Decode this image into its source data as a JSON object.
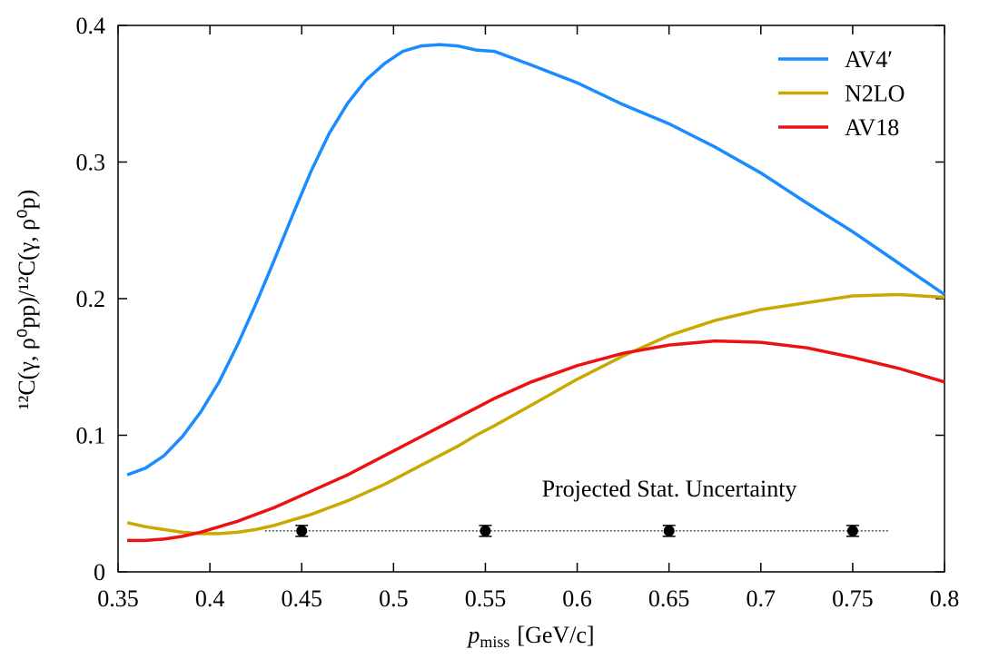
{
  "chart_data": {
    "type": "line",
    "x_label": {
      "symbol": "p",
      "subscript": "miss",
      "unit": "[GeV/c]"
    },
    "y_label": "¹²C(γ, ρ⁰pp)/¹²C(γ, ρ⁰p)",
    "x": [
      0.355,
      0.365,
      0.375,
      0.385,
      0.395,
      0.405,
      0.415,
      0.425,
      0.435,
      0.445,
      0.455,
      0.465,
      0.475,
      0.485,
      0.495,
      0.505,
      0.515,
      0.525,
      0.535,
      0.545,
      0.555,
      0.575,
      0.6,
      0.625,
      0.65,
      0.675,
      0.7,
      0.725,
      0.75,
      0.775,
      0.8
    ],
    "series": [
      {
        "name": "AV4′",
        "color": "#1a8cff",
        "values": [
          0.071,
          0.076,
          0.085,
          0.099,
          0.117,
          0.139,
          0.166,
          0.196,
          0.228,
          0.261,
          0.293,
          0.321,
          0.343,
          0.36,
          0.372,
          0.381,
          0.385,
          0.386,
          0.385,
          0.382,
          0.381,
          0.371,
          0.358,
          0.342,
          0.328,
          0.311,
          0.292,
          0.27,
          0.249,
          0.226,
          0.203
        ]
      },
      {
        "name": "N2LO",
        "color": "#c9a800",
        "values": [
          0.036,
          0.033,
          0.031,
          0.029,
          0.028,
          0.028,
          0.029,
          0.031,
          0.034,
          0.038,
          0.042,
          0.047,
          0.052,
          0.058,
          0.064,
          0.071,
          0.078,
          0.085,
          0.092,
          0.1,
          0.107,
          0.122,
          0.141,
          0.158,
          0.173,
          0.184,
          0.192,
          0.197,
          0.202,
          0.203,
          0.201
        ]
      },
      {
        "name": "AV18",
        "color": "#ee1111",
        "values": [
          0.023,
          0.023,
          0.024,
          0.026,
          0.029,
          0.033,
          0.037,
          0.042,
          0.047,
          0.053,
          0.059,
          0.065,
          0.071,
          0.078,
          0.085,
          0.092,
          0.099,
          0.106,
          0.113,
          0.12,
          0.127,
          0.139,
          0.151,
          0.16,
          0.166,
          0.169,
          0.168,
          0.164,
          0.157,
          0.149,
          0.139
        ]
      }
    ],
    "error_points": {
      "x": [
        0.45,
        0.55,
        0.65,
        0.75
      ],
      "y": [
        0.03,
        0.03,
        0.03,
        0.03
      ],
      "errors": [
        0.004,
        0.004,
        0.004,
        0.004
      ]
    },
    "reference_line": {
      "x": [
        0.43,
        0.77
      ],
      "y": 0.03
    },
    "annotation": "Projected Stat. Uncertainty",
    "xlim": [
      0.35,
      0.8
    ],
    "ylim": [
      0,
      0.4
    ],
    "xticks": [
      0.35,
      0.4,
      0.45,
      0.5,
      0.55,
      0.6,
      0.65,
      0.7,
      0.75,
      0.8
    ],
    "yticks": [
      0,
      0.1,
      0.2,
      0.3,
      0.4
    ],
    "legend": "upper right"
  }
}
